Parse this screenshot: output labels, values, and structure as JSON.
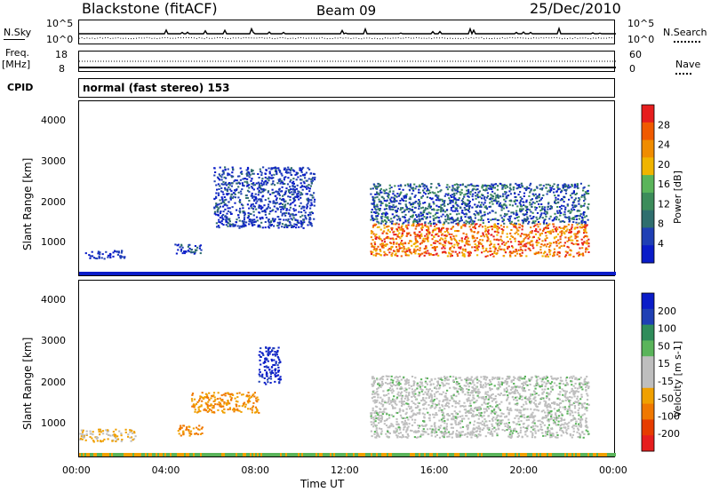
{
  "header": {
    "station": "Blackstone (fitACF)",
    "beam": "Beam 09",
    "date": "25/Dec/2010"
  },
  "top_panels": {
    "nsky_label": "N.Sky",
    "nsky_ticks": [
      "10^5",
      "10^0"
    ],
    "nsky_right_ticks": [
      "10^5",
      "10^0"
    ],
    "nsearch_label": "N.Search",
    "freq_label": "Freq.",
    "freq_unit": "[MHz]",
    "freq_ticks": [
      "18",
      "8"
    ],
    "nave_ticks": [
      "60",
      "0"
    ],
    "nave_label": "Nave",
    "cpid_label": "CPID",
    "cpid_value": "normal (fast stereo) 153"
  },
  "colors": {
    "power_scale": [
      "#0a1cc8",
      "#1f3fb4",
      "#2f6e6e",
      "#3c8c5a",
      "#5ab45a",
      "#f0b400",
      "#f08c00",
      "#f05a00",
      "#e61e1e"
    ],
    "velocity_scale": [
      "#0a1cc8",
      "#1f3fb4",
      "#2f8c5a",
      "#5ab45a",
      "#bebebe",
      "#bebebe",
      "#f0a000",
      "#f07800",
      "#e63c00",
      "#e61e1e"
    ]
  },
  "chart_data": [
    {
      "type": "heatmap",
      "title": "",
      "xlabel": "",
      "ylabel": "Slant Range [km]",
      "xlim": [
        "00:00",
        "24:00"
      ],
      "ylim": [
        180,
        4500
      ],
      "yticks": [
        "1000",
        "2000",
        "3000",
        "4000"
      ],
      "colorbar": {
        "label": "Power [dB]",
        "ticks": [
          "4",
          "8",
          "12",
          "16",
          "20",
          "24",
          "28"
        ]
      },
      "regions": [
        {
          "name": "",
          "time_range": [
            "00:15",
            "02:00"
          ],
          "range_km": [
            650,
            850
          ],
          "value": 4
        },
        {
          "name": "",
          "time_range": [
            "04:15",
            "05:30"
          ],
          "range_km": [
            750,
            1000
          ],
          "value": 8
        },
        {
          "name": "",
          "time_range": [
            "06:00",
            "10:30"
          ],
          "range_km": [
            1400,
            2900
          ],
          "value": 6
        },
        {
          "name": "",
          "time_range": [
            "13:00",
            "22:45"
          ],
          "range_km": [
            700,
            2500
          ],
          "value": 20
        }
      ]
    },
    {
      "type": "heatmap",
      "title": "",
      "xlabel": "Time UT",
      "ylabel": "Slant Range [km]",
      "xlim": [
        "00:00",
        "24:00"
      ],
      "ylim": [
        180,
        4500
      ],
      "yticks": [
        "1000",
        "2000",
        "3000",
        "4000"
      ],
      "xticks": [
        "00:00",
        "04:00",
        "08:00",
        "12:00",
        "16:00",
        "20:00",
        "00:00"
      ],
      "colorbar": {
        "label": "Velocity [m s-1]",
        "ticks": [
          "200",
          "100",
          "50",
          "15",
          "-15",
          "-50",
          "-100",
          "-200"
        ]
      },
      "regions": [
        {
          "name": "",
          "time_range": [
            "00:00",
            "02:30"
          ],
          "range_km": [
            600,
            900
          ],
          "value": -15
        },
        {
          "name": "",
          "time_range": [
            "04:15",
            "05:30"
          ],
          "range_km": [
            750,
            1000
          ],
          "value": -50
        },
        {
          "name": "",
          "time_range": [
            "05:00",
            "08:00"
          ],
          "range_km": [
            1300,
            1800
          ],
          "value": -50
        },
        {
          "name": "",
          "time_range": [
            "08:00",
            "09:00"
          ],
          "range_km": [
            2000,
            2900
          ],
          "value": 100
        },
        {
          "name": "",
          "time_range": [
            "13:00",
            "22:45"
          ],
          "range_km": [
            700,
            2200
          ],
          "value": 0
        }
      ]
    }
  ]
}
